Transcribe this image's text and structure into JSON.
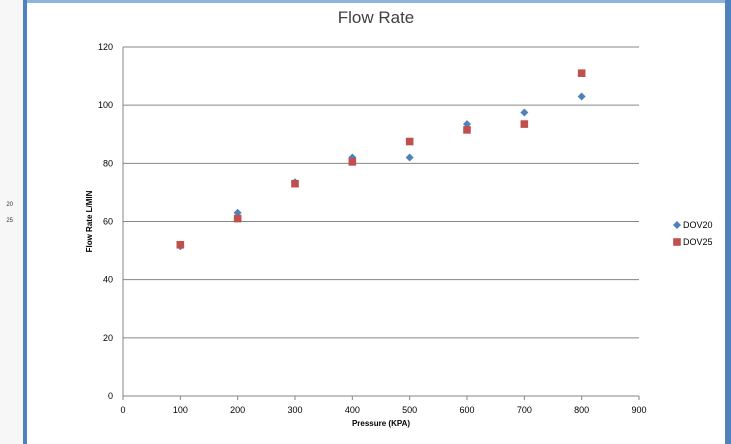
{
  "side_fragments": [
    "20",
    "25"
  ],
  "chart_data": {
    "type": "scatter",
    "title": "Flow Rate",
    "xlabel": "Pressure (KPA)",
    "ylabel": "Flow Rate L/MIN",
    "xlim": [
      0,
      900
    ],
    "ylim": [
      0,
      120
    ],
    "xticks": [
      0,
      100,
      200,
      300,
      400,
      500,
      600,
      700,
      800,
      900
    ],
    "yticks": [
      0,
      20,
      40,
      60,
      80,
      100,
      120
    ],
    "grid": "horizontal",
    "legend_position": "right",
    "series": [
      {
        "name": "DOV20",
        "marker": "diamond",
        "color": "#4f81bd",
        "x": [
          100,
          200,
          300,
          400,
          500,
          600,
          700,
          800
        ],
        "y": [
          51.5,
          63,
          73.5,
          82,
          82,
          93.5,
          97.5,
          103
        ]
      },
      {
        "name": "DOV25",
        "marker": "square",
        "color": "#c0504d",
        "x": [
          100,
          200,
          300,
          400,
          500,
          600,
          700,
          800
        ],
        "y": [
          52,
          61,
          73,
          80.5,
          87.5,
          91.5,
          93.5,
          111
        ]
      }
    ]
  }
}
